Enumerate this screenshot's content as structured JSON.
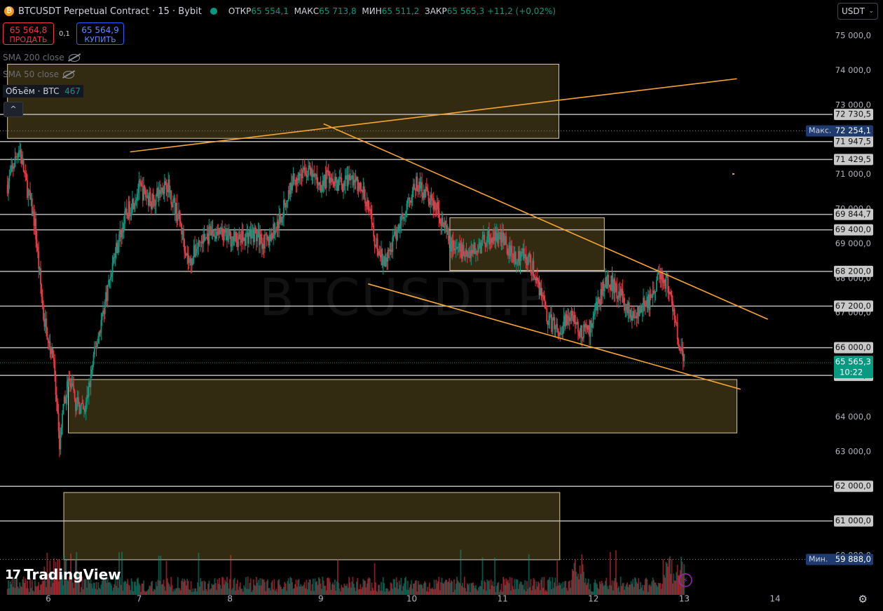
{
  "header": {
    "title": "BTCUSDT Perpetual Contract · 15 · Bybit",
    "coin_letter": "₿",
    "open_label": "ОТКР",
    "open": "65 554,1",
    "high_label": "МАКС",
    "high": "65 713,8",
    "low_label": "МИН",
    "low": "65 511,2",
    "close_label": "ЗАКР",
    "close": "65 565,3",
    "change": "+11,2 (+0,02%)"
  },
  "trade": {
    "sell_price": "65 564,8",
    "sell_label": "ПРОДАТЬ",
    "spread": "0,1",
    "buy_price": "65 564,9",
    "buy_label": "КУПИТЬ"
  },
  "indicators": {
    "sma200": "SMA 200 close",
    "sma50": "SMA 50 close",
    "volume_label": "Объём · BTC",
    "volume_value": "467"
  },
  "collapse_icon": "^",
  "currency": {
    "value": "USDT",
    "chev": "⌄"
  },
  "watermark": "BTCUSDT.P",
  "branding": {
    "logo_mark": "17",
    "logo_text": "TradingView"
  },
  "settings_icon": "⚙",
  "colors": {
    "up": "#089981",
    "down": "#f23645",
    "trendline": "#f7a531",
    "zone": "#6b5a22",
    "level": "#b8b8b8",
    "max_label": "#1e3a6e"
  },
  "chart_data": {
    "type": "candlestick",
    "symbol": "BTCUSDT Perpetual Contract",
    "interval": "15",
    "exchange": "Bybit",
    "y_range": [
      59500,
      75500
    ],
    "y_ticks": [
      {
        "v": 75000,
        "t": "75 000,0"
      },
      {
        "v": 74000,
        "t": "74 000,0"
      },
      {
        "v": 73000,
        "t": "73 000,0"
      },
      {
        "v": 71000,
        "t": "71 000,0"
      },
      {
        "v": 70000,
        "t": "70 000,0"
      },
      {
        "v": 69000,
        "t": "69 000,0"
      },
      {
        "v": 68000,
        "t": "68 000,0"
      },
      {
        "v": 67000,
        "t": "67 000,0"
      },
      {
        "v": 64000,
        "t": "64 000,0"
      },
      {
        "v": 63000,
        "t": "63 000,0"
      },
      {
        "v": 60000,
        "t": "60 000,0"
      }
    ],
    "x_range": [
      5.55,
      14.45
    ],
    "x_ticks": [
      {
        "v": 6,
        "t": "6"
      },
      {
        "v": 7,
        "t": "7"
      },
      {
        "v": 8,
        "t": "8"
      },
      {
        "v": 9,
        "t": "9"
      },
      {
        "v": 10,
        "t": "10"
      },
      {
        "v": 11,
        "t": "11"
      },
      {
        "v": 12,
        "t": "12"
      },
      {
        "v": 13,
        "t": "13"
      },
      {
        "v": 14,
        "t": "14"
      }
    ],
    "levels": [
      {
        "v": 72730.5,
        "t": "72 730,5"
      },
      {
        "v": 71947.5,
        "t": "71 947,5"
      },
      {
        "v": 71429.5,
        "t": "71 429,5"
      },
      {
        "v": 69844.7,
        "t": "69 844,7"
      },
      {
        "v": 69400.0,
        "t": "69 400,0"
      },
      {
        "v": 68200.0,
        "t": "68 200,0"
      },
      {
        "v": 67200.0,
        "t": "67 200,0"
      },
      {
        "v": 66000.0,
        "t": "66 000,0"
      },
      {
        "v": 65200.0,
        "t": "65 200,0"
      },
      {
        "v": 62000.0,
        "t": "62 000,0"
      },
      {
        "v": 61000.0,
        "t": "61 000,0"
      }
    ],
    "dotted_levels": [
      {
        "v": 72254.1,
        "t": "72 254,1",
        "label": "Макс."
      },
      {
        "v": 59888.0,
        "t": "59 888,0",
        "label": "Мин."
      }
    ],
    "last_price": {
      "v": 65565.3,
      "t": "65 565,3",
      "timer": "10:22"
    },
    "low_marker": {
      "v": 65510.1,
      "t": "65 510,1"
    },
    "zones": [
      {
        "x1": 5.55,
        "x2": 11.62,
        "y1": 74180,
        "y2": 72040
      },
      {
        "x1": 10.42,
        "x2": 12.12,
        "y1": 69750,
        "y2": 68230
      },
      {
        "x1": 6.22,
        "x2": 13.58,
        "y1": 65080,
        "y2": 63540
      },
      {
        "x1": 6.17,
        "x2": 11.63,
        "y1": 61820,
        "y2": 59880
      }
    ],
    "trendlines": [
      {
        "x1": 6.9,
        "y1": 71650,
        "x2": 13.58,
        "y2": 73760
      },
      {
        "x1": 9.03,
        "y1": 72460,
        "x2": 13.92,
        "y2": 66820
      },
      {
        "x1": 9.52,
        "y1": 67840,
        "x2": 13.62,
        "y2": 64800
      }
    ],
    "price_path": [
      [
        5.55,
        70700
      ],
      [
        5.68,
        71800
      ],
      [
        5.75,
        70800
      ],
      [
        5.85,
        69600
      ],
      [
        5.95,
        66800
      ],
      [
        6.05,
        65800
      ],
      [
        6.12,
        63200
      ],
      [
        6.18,
        64500
      ],
      [
        6.22,
        65100
      ],
      [
        6.3,
        64400
      ],
      [
        6.4,
        64100
      ],
      [
        6.5,
        65700
      ],
      [
        6.6,
        67000
      ],
      [
        6.72,
        68600
      ],
      [
        6.85,
        69800
      ],
      [
        7.0,
        70600
      ],
      [
        7.15,
        70200
      ],
      [
        7.3,
        70800
      ],
      [
        7.45,
        69600
      ],
      [
        7.55,
        68400
      ],
      [
        7.65,
        69000
      ],
      [
        7.8,
        69300
      ],
      [
        7.95,
        69200
      ],
      [
        8.1,
        69100
      ],
      [
        8.25,
        69300
      ],
      [
        8.4,
        69000
      ],
      [
        8.55,
        69700
      ],
      [
        8.7,
        70900
      ],
      [
        8.85,
        71100
      ],
      [
        9.0,
        70700
      ],
      [
        9.1,
        71000
      ],
      [
        9.2,
        70700
      ],
      [
        9.35,
        70900
      ],
      [
        9.5,
        70300
      ],
      [
        9.6,
        69000
      ],
      [
        9.7,
        68400
      ],
      [
        9.82,
        69200
      ],
      [
        9.95,
        70200
      ],
      [
        10.05,
        70700
      ],
      [
        10.15,
        70500
      ],
      [
        10.3,
        69900
      ],
      [
        10.42,
        69000
      ],
      [
        10.55,
        68800
      ],
      [
        10.7,
        68800
      ],
      [
        10.85,
        69200
      ],
      [
        11.0,
        69100
      ],
      [
        11.15,
        68600
      ],
      [
        11.25,
        68700
      ],
      [
        11.38,
        68000
      ],
      [
        11.5,
        66800
      ],
      [
        11.62,
        66500
      ],
      [
        11.75,
        67000
      ],
      [
        11.85,
        66500
      ],
      [
        11.95,
        66500
      ],
      [
        12.05,
        67300
      ],
      [
        12.15,
        68000
      ],
      [
        12.3,
        67500
      ],
      [
        12.45,
        66800
      ],
      [
        12.55,
        67200
      ],
      [
        12.65,
        67400
      ],
      [
        12.72,
        68200
      ],
      [
        12.82,
        67800
      ],
      [
        12.9,
        66800
      ],
      [
        12.95,
        66000
      ],
      [
        13.0,
        65565
      ]
    ],
    "volume_max": 467
  }
}
